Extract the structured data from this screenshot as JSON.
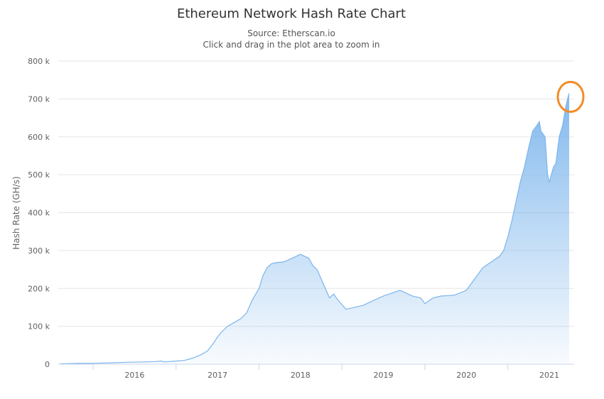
{
  "chart_data": {
    "type": "area",
    "title": "Ethereum Network Hash Rate Chart",
    "subtitle_lines": [
      "Source: Etherscan.io",
      "Click and drag in the plot area to zoom in"
    ],
    "xlabel": "",
    "ylabel": "Hash Rate (GH/s)",
    "x_ticks": [
      "2016",
      "2017",
      "2018",
      "2019",
      "2020",
      "2021"
    ],
    "y_ticks": [
      "0",
      "100 k",
      "200 k",
      "300 k",
      "400 k",
      "500 k",
      "600 k",
      "700 k",
      "800 k"
    ],
    "ylim": [
      0,
      800000
    ],
    "xlim": [
      2015.58,
      2021.8
    ],
    "grid": true,
    "legend": "none",
    "series_color": "#7cb5ec",
    "annotation_color": "#f28c28",
    "annotation": "orange circle around the latest peak (~715 k)",
    "x": [
      2015.6,
      2015.8,
      2016.0,
      2016.2,
      2016.4,
      2016.6,
      2016.75,
      2016.82,
      2016.86,
      2016.95,
      2017.1,
      2017.2,
      2017.3,
      2017.38,
      2017.45,
      2017.5,
      2017.55,
      2017.62,
      2017.7,
      2017.78,
      2017.85,
      2017.92,
      2018.0,
      2018.05,
      2018.1,
      2018.15,
      2018.2,
      2018.3,
      2018.4,
      2018.5,
      2018.6,
      2018.65,
      2018.7,
      2018.8,
      2018.85,
      2018.9,
      2018.95,
      2019.05,
      2019.15,
      2019.25,
      2019.35,
      2019.5,
      2019.7,
      2019.85,
      2019.95,
      2020.0,
      2020.1,
      2020.2,
      2020.35,
      2020.5,
      2020.6,
      2020.7,
      2020.8,
      2020.9,
      2020.95,
      2021.0,
      2021.05,
      2021.1,
      2021.15,
      2021.2,
      2021.25,
      2021.3,
      2021.35,
      2021.38,
      2021.4,
      2021.45,
      2021.48,
      2021.5,
      2021.55,
      2021.58,
      2021.62,
      2021.66,
      2021.7,
      2021.72,
      2021.74
    ],
    "values": [
      1000,
      2000,
      2500,
      3500,
      5000,
      6000,
      7000,
      8500,
      6000,
      7500,
      10000,
      16000,
      25000,
      35000,
      55000,
      72000,
      85000,
      100000,
      110000,
      120000,
      135000,
      170000,
      200000,
      235000,
      255000,
      265000,
      268000,
      270000,
      280000,
      290000,
      280000,
      260000,
      250000,
      200000,
      175000,
      185000,
      170000,
      145000,
      150000,
      155000,
      165000,
      180000,
      195000,
      180000,
      175000,
      160000,
      175000,
      180000,
      182000,
      195000,
      225000,
      255000,
      270000,
      285000,
      300000,
      335000,
      380000,
      430000,
      480000,
      520000,
      570000,
      615000,
      630000,
      640000,
      615000,
      600000,
      500000,
      480000,
      520000,
      530000,
      600000,
      630000,
      680000,
      700000,
      715000
    ]
  }
}
